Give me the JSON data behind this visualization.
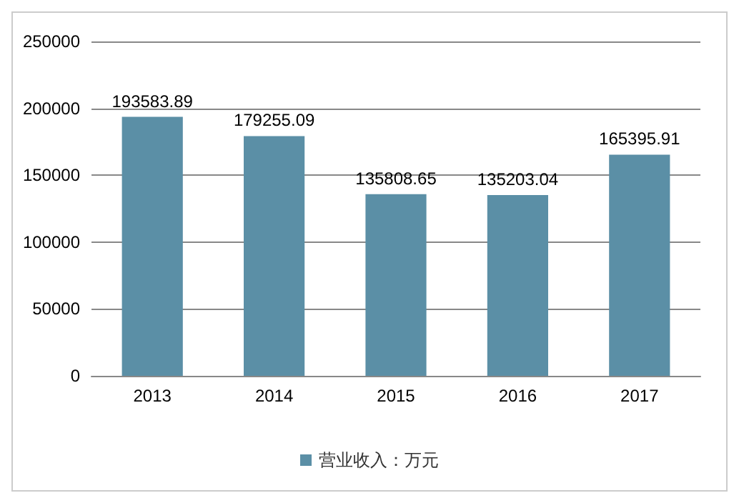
{
  "chart_data": {
    "type": "bar",
    "categories": [
      "2013",
      "2014",
      "2015",
      "2016",
      "2017"
    ],
    "series": [
      {
        "name": "营业收入：万元",
        "color": "#5b8fa6",
        "values": [
          193583.89,
          179255.09,
          135808.65,
          135203.04,
          165395.91
        ]
      }
    ],
    "ylim": [
      0,
      250000
    ],
    "yticks": [
      0,
      50000,
      100000,
      150000,
      200000,
      250000
    ],
    "grid": "y",
    "legend": "bottom",
    "data_labels": true
  }
}
